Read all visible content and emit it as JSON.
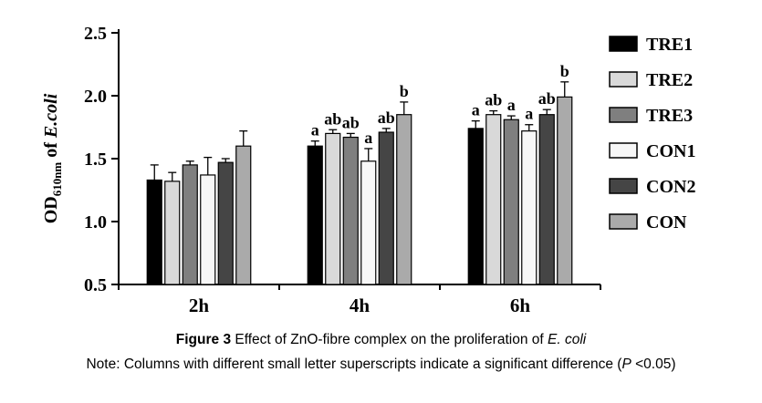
{
  "chart_data": {
    "type": "bar",
    "title": "",
    "ylabel": "OD610nm of E.coli",
    "ylabel_parts": {
      "prefix": "OD",
      "subscript": "610nm",
      "middle": " of ",
      "italic": "E.coli"
    },
    "xlabel": "",
    "ylim": [
      0.5,
      2.5
    ],
    "yticks": [
      0.5,
      1.0,
      1.5,
      2.0,
      2.5
    ],
    "grid": false,
    "legend_position": "right",
    "categories": [
      "2h",
      "4h",
      "6h"
    ],
    "series": [
      {
        "name": "TRE1",
        "color": "#000000",
        "values": [
          1.33,
          1.6,
          1.74
        ],
        "errors": [
          0.12,
          0.04,
          0.06
        ],
        "letters": [
          "",
          "a",
          "a"
        ]
      },
      {
        "name": "TRE2",
        "color": "#d9d9d9",
        "values": [
          1.32,
          1.7,
          1.85
        ],
        "errors": [
          0.07,
          0.03,
          0.03
        ],
        "letters": [
          "",
          "ab",
          "ab"
        ]
      },
      {
        "name": "TRE3",
        "color": "#7f7f7f",
        "values": [
          1.45,
          1.67,
          1.81
        ],
        "errors": [
          0.03,
          0.03,
          0.03
        ],
        "letters": [
          "",
          "ab",
          "a"
        ]
      },
      {
        "name": "CON1",
        "color": "#f7f7f7",
        "values": [
          1.37,
          1.48,
          1.72
        ],
        "errors": [
          0.14,
          0.1,
          0.05
        ],
        "letters": [
          "",
          "a",
          "a"
        ]
      },
      {
        "name": "CON2",
        "color": "#454545",
        "values": [
          1.47,
          1.71,
          1.85
        ],
        "errors": [
          0.03,
          0.03,
          0.04
        ],
        "letters": [
          "",
          "ab",
          "ab"
        ]
      },
      {
        "name": "CON",
        "color": "#aaaaaa",
        "values": [
          1.6,
          1.85,
          1.99
        ],
        "errors": [
          0.12,
          0.1,
          0.12
        ],
        "letters": [
          "",
          "b",
          "b"
        ]
      }
    ]
  },
  "caption": {
    "label": "Figure 3",
    "text": " Effect of ZnO-fibre complex on the proliferation of ",
    "italic": "E. coli"
  },
  "note": {
    "prefix": "Note: Columns with different small letter superscripts indicate a significant difference (",
    "italic": "P",
    "suffix": " <0.05)"
  }
}
